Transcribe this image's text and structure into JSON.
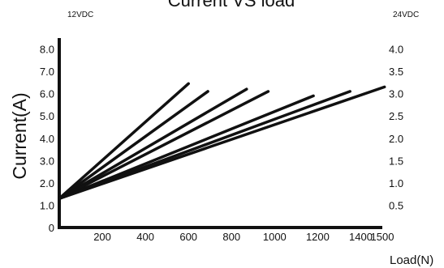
{
  "chart_data": {
    "type": "line",
    "title": "Current VS load",
    "left_supply": "12VDC",
    "right_supply": "24VDC",
    "xlabel": "Load(N)",
    "ylabel": "Current(A)",
    "xlim": [
      0,
      1500
    ],
    "ylim": [
      0,
      8.6
    ],
    "y2lim": [
      0,
      4.3
    ],
    "x_tick_labels": [
      "200",
      "400",
      "600",
      "800",
      "1000",
      "1200",
      "1400",
      "1500"
    ],
    "y_tick_labels": [
      "0",
      "1.0",
      "2.0",
      "3.0",
      "4.0",
      "5.0",
      "6.0",
      "7.0",
      "8.0"
    ],
    "y2_tick_labels": [
      "0.5",
      "1.0",
      "1.5",
      "2.0",
      "2.5",
      "3.0",
      "3.5",
      "4.0"
    ],
    "grid": false,
    "line_color": "#111111",
    "series": [
      {
        "x": [
          0,
          600
        ],
        "y": [
          1.3,
          6.45
        ]
      },
      {
        "x": [
          0,
          690
        ],
        "y": [
          1.3,
          6.1
        ]
      },
      {
        "x": [
          0,
          870
        ],
        "y": [
          1.3,
          6.2
        ]
      },
      {
        "x": [
          0,
          970
        ],
        "y": [
          1.3,
          6.1
        ]
      },
      {
        "x": [
          0,
          1180
        ],
        "y": [
          1.3,
          5.9
        ]
      },
      {
        "x": [
          0,
          1350
        ],
        "y": [
          1.3,
          6.1
        ]
      },
      {
        "x": [
          0,
          1510
        ],
        "y": [
          1.3,
          6.3
        ]
      }
    ]
  }
}
